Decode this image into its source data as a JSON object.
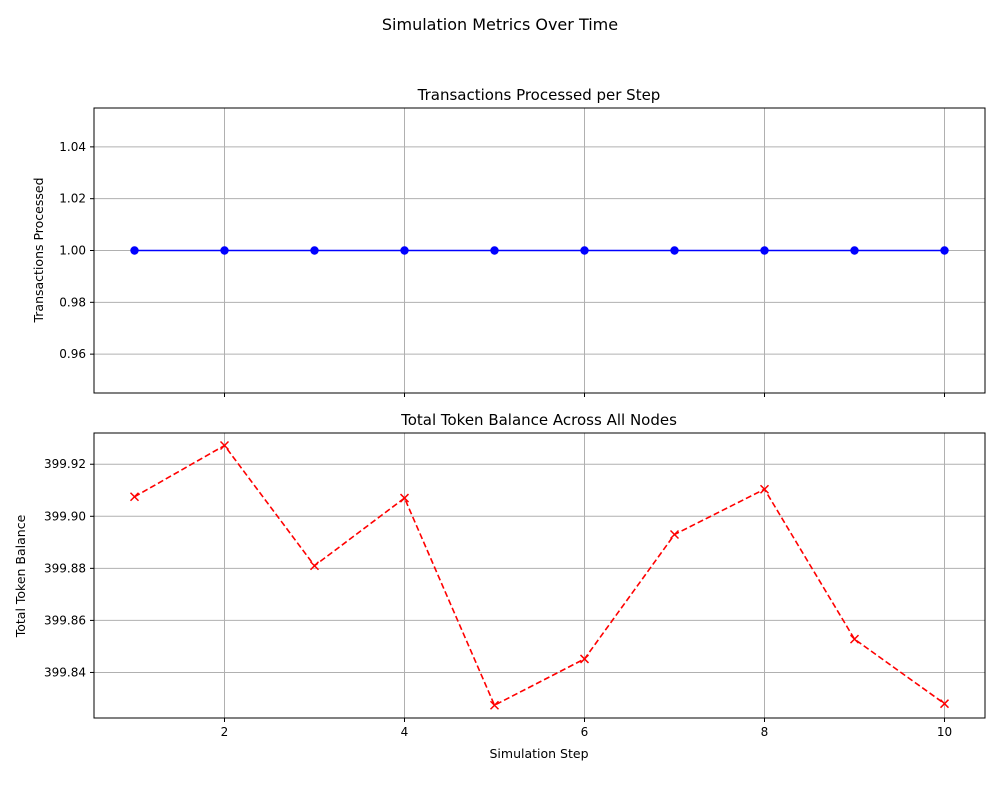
{
  "figure": {
    "suptitle": "Simulation Metrics Over Time"
  },
  "chart_data": [
    {
      "type": "line",
      "title": "Transactions Processed per Step",
      "xlabel": "",
      "ylabel": "Transactions Processed",
      "xlim": [
        0.55,
        10.45
      ],
      "ylim": [
        0.945,
        1.055
      ],
      "xticks": [
        2,
        4,
        6,
        8,
        10
      ],
      "xtick_labels_visible": false,
      "yticks": [
        0.96,
        0.98,
        1.0,
        1.02,
        1.04
      ],
      "ytick_labels": [
        "0.96",
        "0.98",
        "1.00",
        "1.02",
        "1.04"
      ],
      "grid": true,
      "series": [
        {
          "x": [
            1,
            2,
            3,
            4,
            5,
            6,
            7,
            8,
            9,
            10
          ],
          "y": [
            1,
            1,
            1,
            1,
            1,
            1,
            1,
            1,
            1,
            1
          ],
          "color": "#0000ff",
          "linestyle": "solid",
          "marker": "circle"
        }
      ]
    },
    {
      "type": "line",
      "title": "Total Token Balance Across All Nodes",
      "xlabel": "Simulation Step",
      "ylabel": "Total Token Balance",
      "xlim": [
        0.55,
        10.45
      ],
      "ylim": [
        399.8225,
        399.932
      ],
      "xticks": [
        2,
        4,
        6,
        8,
        10
      ],
      "xtick_labels": [
        "2",
        "4",
        "6",
        "8",
        "10"
      ],
      "yticks": [
        399.84,
        399.86,
        399.88,
        399.9,
        399.92
      ],
      "ytick_labels": [
        "399.84",
        "399.86",
        "399.88",
        "399.90",
        "399.92"
      ],
      "grid": true,
      "series": [
        {
          "x": [
            1,
            2,
            3,
            4,
            5,
            6,
            7,
            8,
            9,
            10
          ],
          "y": [
            399.9075,
            399.9272,
            399.881,
            399.907,
            399.8274,
            399.8452,
            399.893,
            399.9104,
            399.8528,
            399.828
          ],
          "color": "#ff0000",
          "linestyle": "dashed",
          "marker": "x"
        }
      ]
    }
  ]
}
